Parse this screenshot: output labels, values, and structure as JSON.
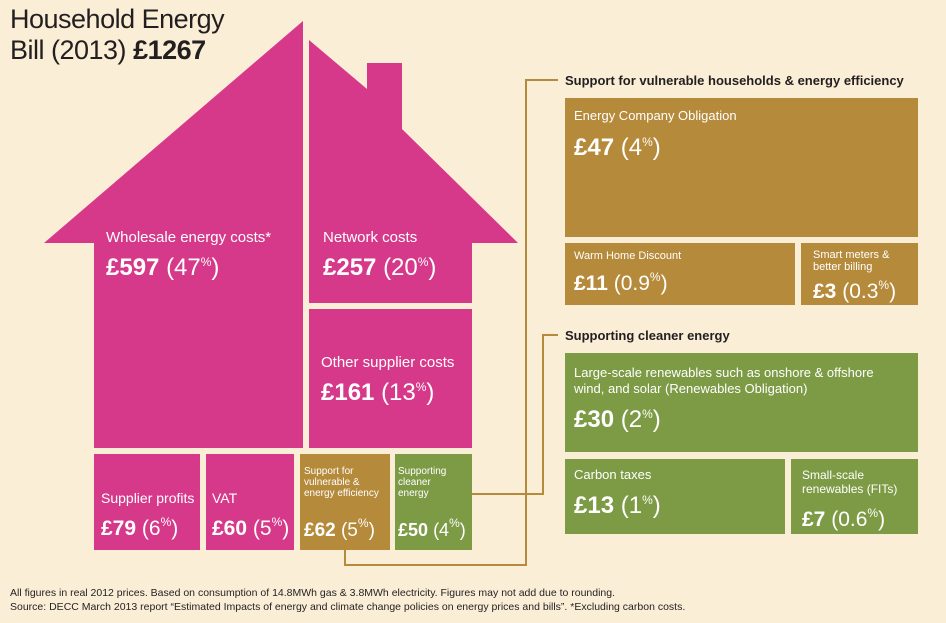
{
  "title": {
    "line1": "Household Energy",
    "line2": "Bill (2013)",
    "total": "£1267"
  },
  "house": {
    "wholesale": {
      "label": "Wholesale energy costs*",
      "amount": "£597",
      "pct": "(47%)"
    },
    "network": {
      "label": "Network costs",
      "amount": "£257",
      "pct": "(20%)"
    },
    "other_supplier": {
      "label": "Other supplier costs",
      "amount": "£161",
      "pct": "(13%)"
    },
    "supplier_profits": {
      "label": "Supplier profits",
      "amount": "£79",
      "pct": "(6%)"
    },
    "vat": {
      "label": "VAT",
      "amount": "£60",
      "pct": "(5%)"
    },
    "support_vulnerable": {
      "label": "Support for vulnerable & energy efficiency",
      "amount": "£62",
      "pct": "(5%)"
    },
    "supporting_cleaner": {
      "label": "Supporting cleaner energy",
      "amount": "£50",
      "pct": "(4%)"
    }
  },
  "vulnerable_section": {
    "heading": "Support for vulnerable households & energy efficiency",
    "eco": {
      "label": "Energy Company Obligation",
      "amount": "£47",
      "pct": "(4%)"
    },
    "warm_home": {
      "label": "Warm Home Discount",
      "amount": "£11",
      "pct": "(0.9%)"
    },
    "smart_meters": {
      "label": "Smart meters & better billing",
      "amount": "£3",
      "pct": "(0.3%)"
    }
  },
  "cleaner_section": {
    "heading": "Supporting cleaner energy",
    "renewables": {
      "label": "Large-scale renewables such as onshore & offshore wind, and solar (Renewables Obligation)",
      "amount": "£30",
      "pct": "(2%)"
    },
    "carbon_taxes": {
      "label": "Carbon taxes",
      "amount": "£13",
      "pct": "(1%)"
    },
    "small_scale": {
      "label": "Small-scale renewables (FITs)",
      "amount": "£7",
      "pct": "(0.6%)"
    }
  },
  "footnotes": {
    "line1": "All figures in real 2012 prices. Based on consumption of 14.8MWh gas & 3.8MWh electricity. Figures may not add due to rounding.",
    "line2": "Source: DECC March 2013 report “Estimated Impacts of energy and climate change policies on energy prices and bills”. *Excluding carbon costs."
  },
  "colors": {
    "background": "#fbeed6",
    "pink": "#d6398a",
    "brown": "#b58a3a",
    "green": "#7d9a45",
    "connector": "#b58a3a"
  }
}
